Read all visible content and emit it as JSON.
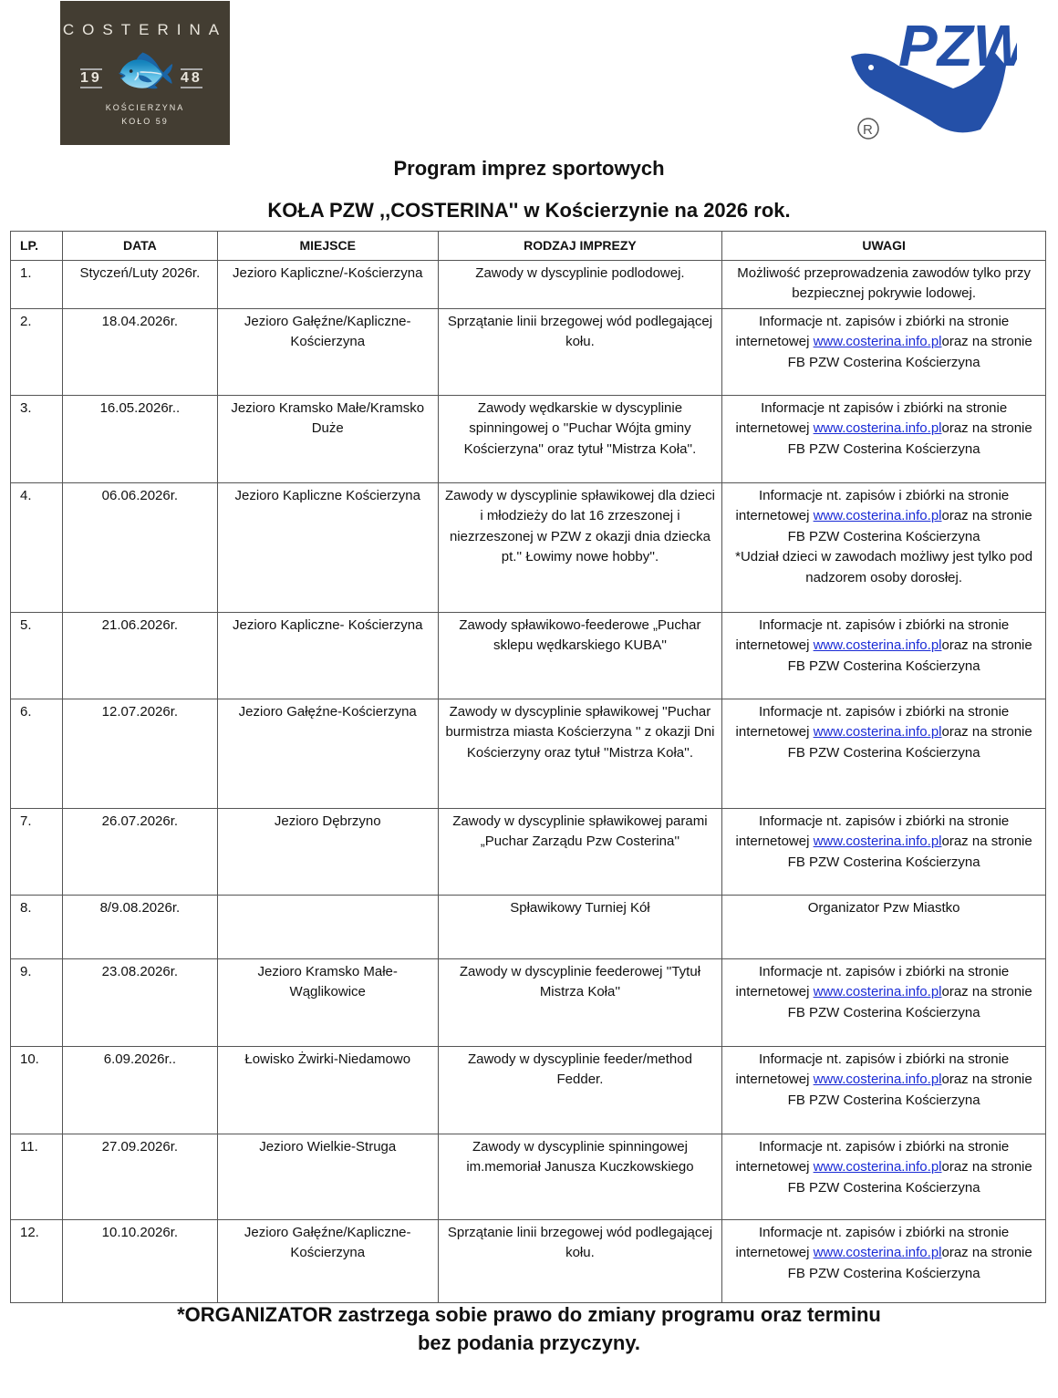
{
  "logos": {
    "costerina": {
      "name": "COSTERINA",
      "year_left": "19",
      "year_right": "48",
      "town": "KOŚCIERZYNA",
      "unit": "KOŁO 59"
    },
    "pzw": {
      "name": "PZW",
      "mark": "®",
      "stars": "××××××",
      "color": "#2450a8"
    }
  },
  "title_line1": "Program imprez sportowych",
  "title_line2": "KOŁA PZW ,,COSTERINA'' w Kościerzynie na 2026 rok.",
  "table": {
    "headers": [
      "LP.",
      "DATA",
      "MIEJSCE",
      "RODZAJ IMPREZY",
      "UWAGI"
    ],
    "rows": [
      {
        "lp": "1.",
        "date": "Styczeń/Luty 2026r.",
        "place": "Jezioro Kapliczne/-Kościerzyna",
        "event": "Zawody w dyscyplinie podlodowej.",
        "notes": {
          "text": "Możliwość przeprowadzenia zawodów tylko przy bezpiecznej pokrywie lodowej."
        },
        "h": 49
      },
      {
        "lp": "2.",
        "date": "18.04.2026r.",
        "place": "Jezioro Gałęźne/Kapliczne-Kościerzyna",
        "event": "Sprzątanie linii brzegowej wód podlegającej kołu.",
        "notes": {
          "text": "Informacje nt. zapisów i zbiórki na stronie internetowej",
          "link": "www.costerina.info.pl",
          "after": "oraz na stronie FB PZW Costerina Kościerzyna"
        },
        "h": 95
      },
      {
        "lp": "3.",
        "date": "16.05.2026r..",
        "place": "Jezioro Kramsko Małe/Kramsko Duże",
        "event": "Zawody wędkarskie w dyscyplinie spinningowej o ''Puchar Wójta gminy Kościerzyna'' oraz tytuł ''Mistrza Koła''.",
        "notes": {
          "text": "Informacje nt zapisów i zbiórki na stronie internetowej",
          "link": "www.costerina.info.pl",
          "after": "oraz na stronie FB PZW Costerina Kościerzyna"
        },
        "h": 96
      },
      {
        "lp": "4.",
        "date": "06.06.2026r.",
        "place": "Jezioro Kapliczne Kościerzyna",
        "event": "Zawody  w dyscyplinie spławikowej dla dzieci i młodzieży do lat 16 zrzeszonej i niezrzeszonej w PZW z okazji dnia dziecka pt.'' Łowimy nowe hobby''.",
        "notes": {
          "text": "Informacje nt. zapisów i zbiórki na stronie internetowej",
          "link": "www.costerina.info.pl",
          "after": "oraz na stronie FB PZW Costerina Kościerzyna",
          "extra": "*Udział dzieci w  zawodach możliwy jest tylko pod nadzorem osoby dorosłej."
        },
        "h": 142
      },
      {
        "lp": "5.",
        "date": "21.06.2026r.",
        "place": "Jezioro Kapliczne- Kościerzyna",
        "event": "Zawody spławikowo-feederowe „Puchar sklepu wędkarskiego KUBA''",
        "notes": {
          "text": "Informacje nt. zapisów i zbiórki na stronie internetowej",
          "link": "www.costerina.info.pl",
          "after": "oraz na stronie FB PZW Costerina Kościerzyna"
        },
        "h": 95
      },
      {
        "lp": "6.",
        "date": "12.07.2026r.",
        "place": "Jezioro Gałęźne-Kościerzyna",
        "event": "Zawody  w dyscyplinie spławikowej ''Puchar burmistrza miasta Kościerzyna '' z okazji Dni Kościerzyny oraz tytuł ''Mistrza Koła''.",
        "notes": {
          "text": "Informacje nt. zapisów i zbiórki na stronie internetowej",
          "link": "www.costerina.info.pl",
          "after": "oraz na stronie FB PZW Costerina Kościerzyna"
        },
        "h": 120
      },
      {
        "lp": "7.",
        "date": "26.07.2026r.",
        "place": "Jezioro Dębrzyno",
        "event": "Zawody w dyscyplinie spławikowej parami „Puchar Zarządu Pzw Costerina''",
        "notes": {
          "text": "Informacje nt. zapisów i zbiórki na stronie internetowej",
          "link": "www.costerina.info.pl",
          "after": "oraz na stronie FB PZW Costerina Kościerzyna"
        },
        "h": 95
      },
      {
        "lp": "8.",
        "date": "8/9.08.2026r.",
        "place": "",
        "event": "Spławikowy Turniej Kół",
        "notes": {
          "text": "Organizator Pzw Miastko"
        },
        "h": 70
      },
      {
        "lp": "9.",
        "date": "23.08.2026r.",
        "place": "Jezioro Kramsko Małe-Wąglikowice",
        "event": "Zawody w dyscyplinie feederowej ''Tytuł Mistrza Koła''",
        "notes": {
          "text": "Informacje nt. zapisów i zbiórki na stronie internetowej",
          "link": "www.costerina.info.pl",
          "after": "oraz na stronie FB PZW Costerina Kościerzyna"
        },
        "h": 96
      },
      {
        "lp": "10.",
        "date": "6.09.2026r..",
        "place": "Łowisko Żwirki-Niedamowo",
        "event": "Zawody w dyscyplinie feeder/method Fedder.",
        "notes": {
          "text": "Informacje nt. zapisów i zbiórki na stronie internetowej",
          "link": "www.costerina.info.pl",
          "after": "oraz na stronie FB PZW Costerina Kościerzyna"
        },
        "h": 96
      },
      {
        "lp": "11.",
        "date": "27.09.2026r.",
        "place": "Jezioro Wielkie-Struga",
        "event": "Zawody w dyscyplinie spinningowej im.memoriał Janusza Kuczkowskiego",
        "notes": {
          "text": "Informacje nt. zapisów i zbiórki na stronie internetowej",
          "link": "www.costerina.info.pl",
          "after": "oraz na stronie FB PZW Costerina Kościerzyna"
        },
        "h": 94
      },
      {
        "lp": "12.",
        "date": "10.10.2026r.",
        "place": "Jezioro Gałęźne/Kapliczne-Kościerzyna",
        "event": "Sprzątanie linii brzegowej wód podlegającej kołu.",
        "notes": {
          "text": "Informacje nt. zapisów i zbiórki na stronie internetowej",
          "link": "www.costerina.info.pl",
          "after": "oraz na stronie FB PZW Costerina Kościerzyna"
        },
        "h": 91
      }
    ]
  },
  "footer_line1": "*ORGANIZATOR  zastrzega sobie prawo do zmiany programu oraz terminu",
  "footer_line2": "bez podania przyczyny."
}
